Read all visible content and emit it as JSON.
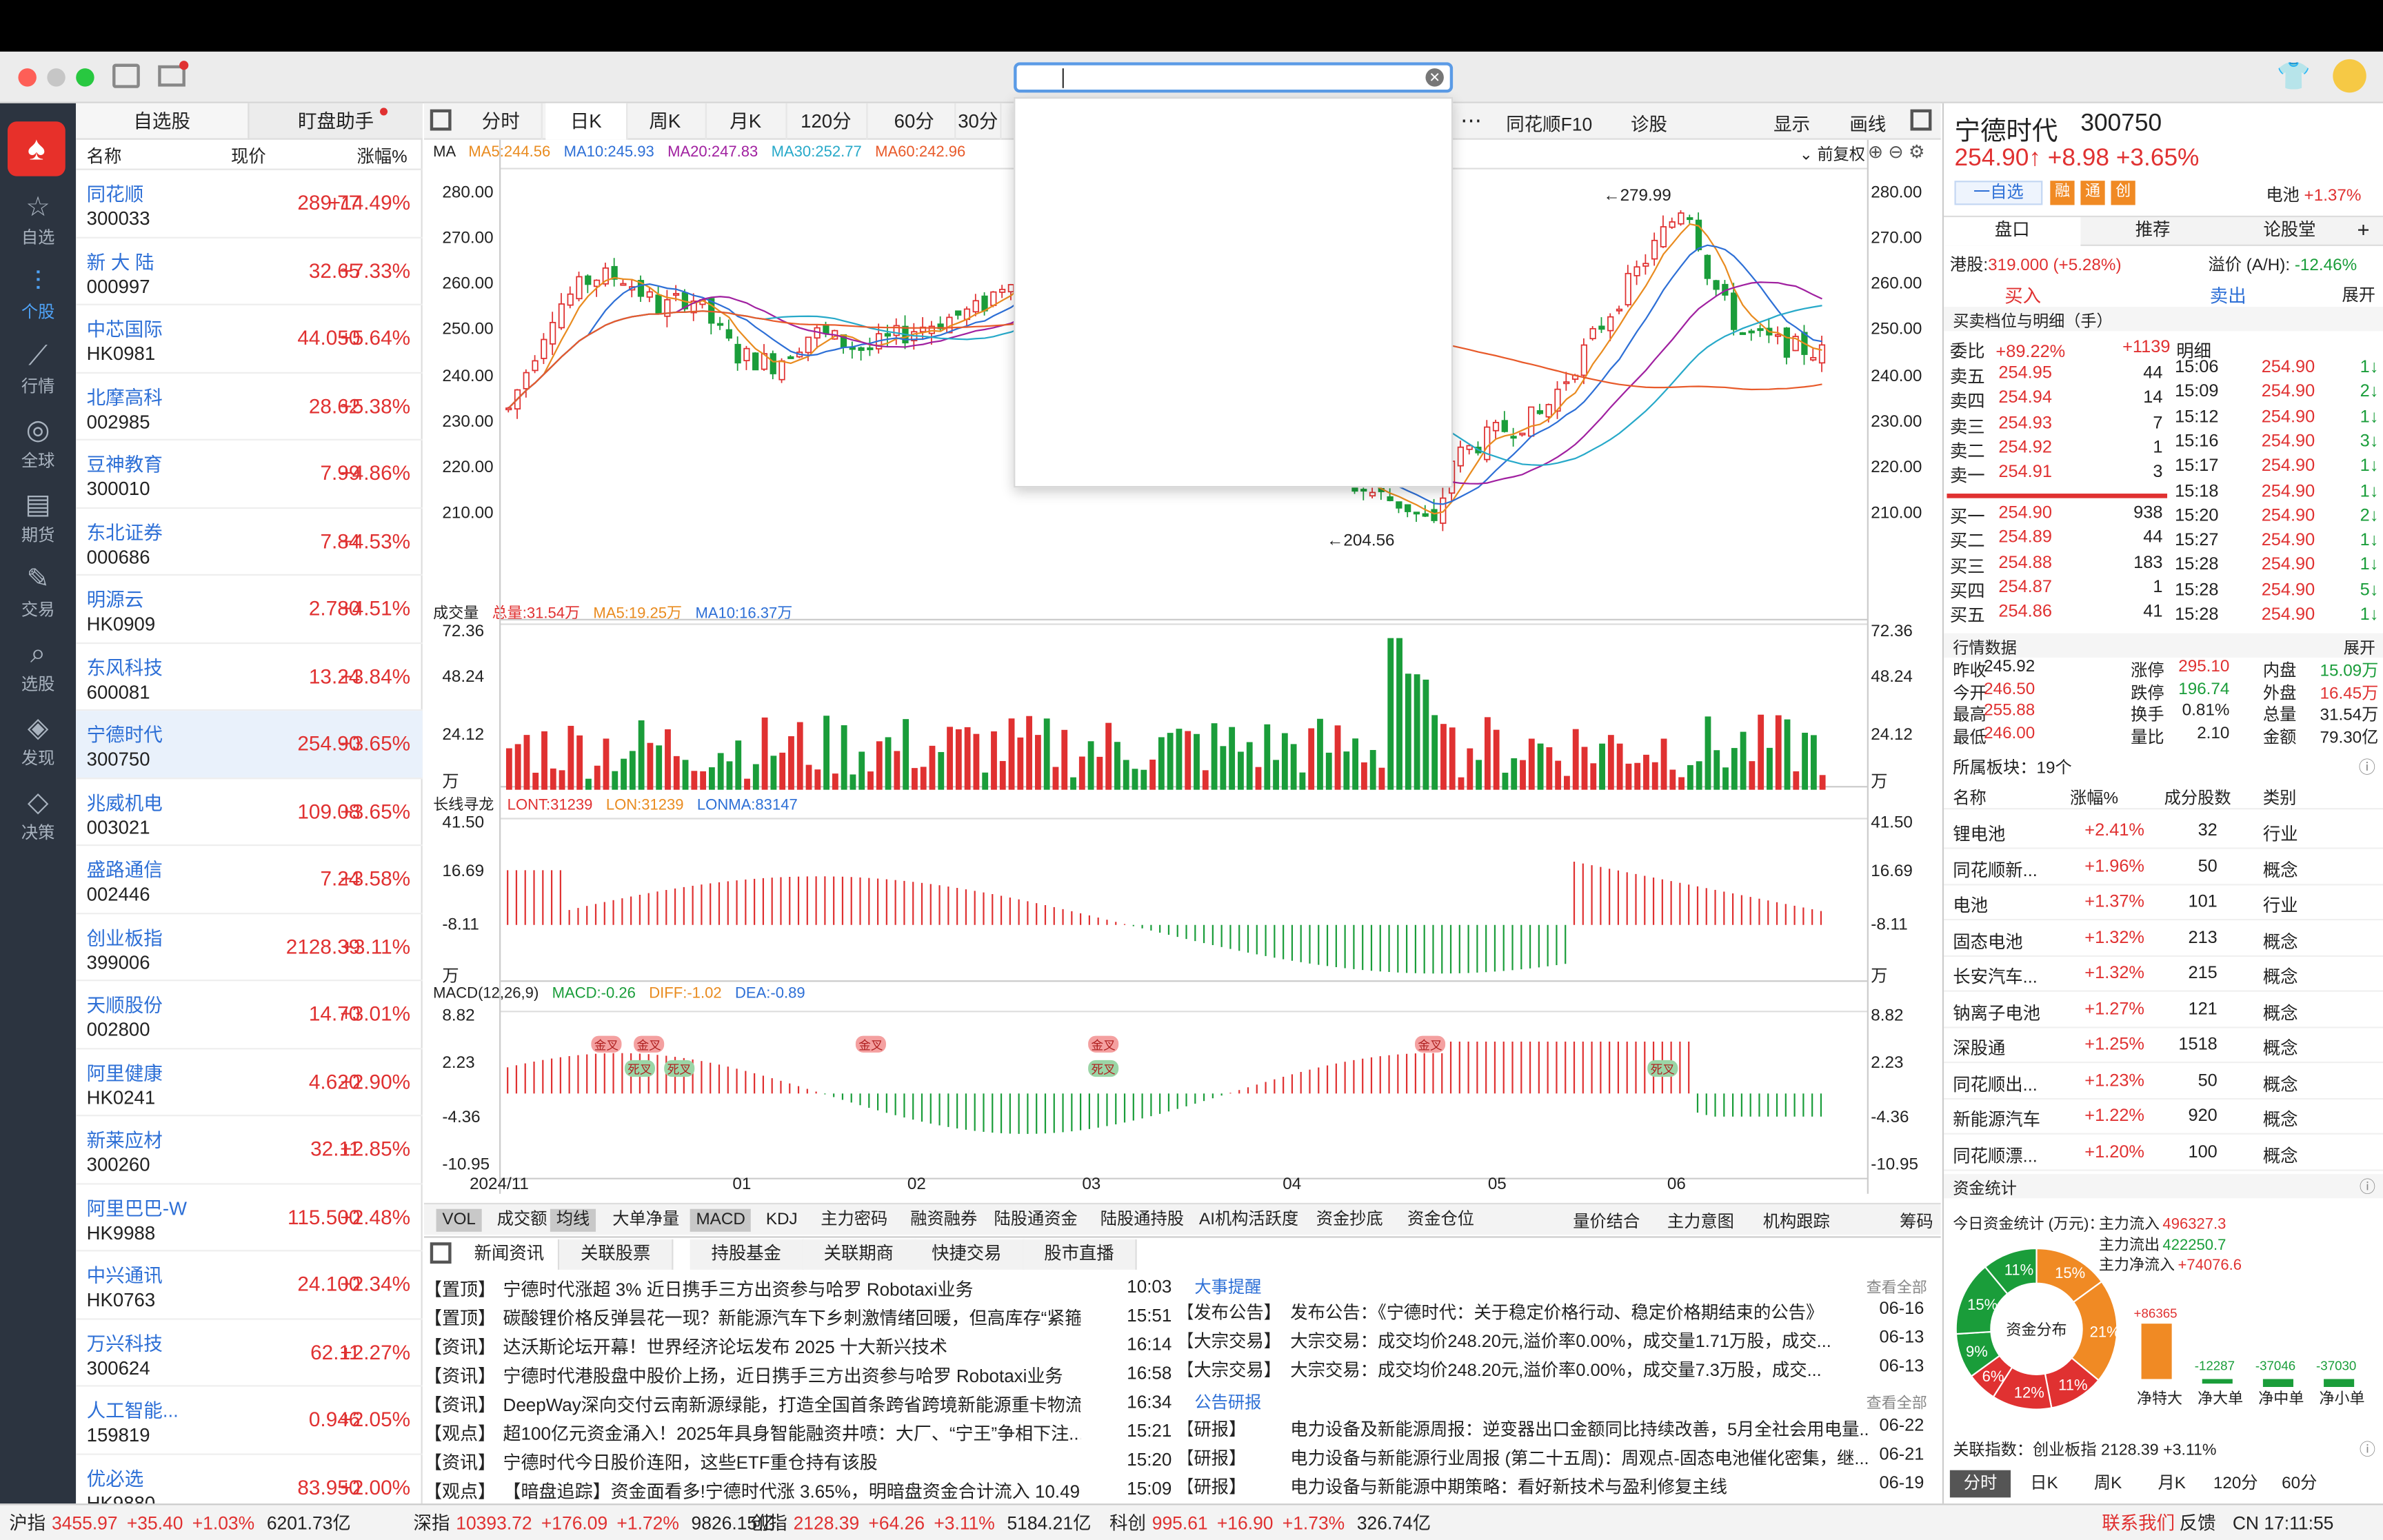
{
  "window": {
    "search_value": ""
  },
  "nav": [
    {
      "label": "自选",
      "icon": "star-icon"
    },
    {
      "label": "个股",
      "icon": "candlestick-icon"
    },
    {
      "label": "行情",
      "icon": "chart-line-icon"
    },
    {
      "label": "全球",
      "icon": "globe-icon"
    },
    {
      "label": "期货",
      "icon": "futures-icon"
    },
    {
      "label": "交易",
      "icon": "trade-icon"
    },
    {
      "label": "选股",
      "icon": "stock-picker-icon"
    },
    {
      "label": "发现",
      "icon": "compass-icon"
    },
    {
      "label": "决策",
      "icon": "diamond-icon"
    }
  ],
  "watchlist": {
    "tabs": [
      "自选股",
      "盯盘助手"
    ],
    "headers": [
      "名称",
      "现价",
      "涨幅%"
    ],
    "rows": [
      {
        "name": "同花顺",
        "code": "300033",
        "price": "289.77",
        "pct": "+14.49%"
      },
      {
        "name": "新 大 陆",
        "code": "000997",
        "price": "32.65",
        "pct": "+7.33%"
      },
      {
        "name": "中芯国际",
        "code": "HK0981",
        "price": "44.050",
        "pct": "+5.64%"
      },
      {
        "name": "北摩高科",
        "code": "002985",
        "price": "28.62",
        "pct": "+5.38%"
      },
      {
        "name": "豆神教育",
        "code": "300010",
        "price": "7.99",
        "pct": "+4.86%"
      },
      {
        "name": "东北证券",
        "code": "000686",
        "price": "7.84",
        "pct": "+4.53%"
      },
      {
        "name": "明源云",
        "code": "HK0909",
        "price": "2.780",
        "pct": "+4.51%"
      },
      {
        "name": "东风科技",
        "code": "600081",
        "price": "13.24",
        "pct": "+3.84%"
      },
      {
        "name": "宁德时代",
        "code": "300750",
        "price": "254.90",
        "pct": "+3.65%"
      },
      {
        "name": "兆威机电",
        "code": "003021",
        "price": "109.08",
        "pct": "+3.65%"
      },
      {
        "name": "盛路通信",
        "code": "002446",
        "price": "7.24",
        "pct": "+3.58%"
      },
      {
        "name": "创业板指",
        "code": "399006",
        "price": "2128.39",
        "pct": "+3.11%"
      },
      {
        "name": "天顺股份",
        "code": "002800",
        "price": "14.70",
        "pct": "+3.01%"
      },
      {
        "name": "阿里健康",
        "code": "HK0241",
        "price": "4.620",
        "pct": "+2.90%"
      },
      {
        "name": "新莱应材",
        "code": "300260",
        "price": "32.11",
        "pct": "+2.85%"
      },
      {
        "name": "阿里巴巴-W",
        "code": "HK9988",
        "price": "115.500",
        "pct": "+2.48%"
      },
      {
        "name": "中兴通讯",
        "code": "HK0763",
        "price": "24.100",
        "pct": "+2.34%"
      },
      {
        "name": "万兴科技",
        "code": "300624",
        "price": "62.11",
        "pct": "+2.27%"
      },
      {
        "name": "人工智能...",
        "code": "159819",
        "price": "0.946",
        "pct": "+2.05%"
      },
      {
        "name": "优必选",
        "code": "HK9880",
        "price": "83.950",
        "pct": "+2.00%"
      }
    ]
  },
  "chart": {
    "tabs": [
      "分时",
      "日K",
      "周K",
      "月K",
      "120分",
      "60分",
      "30分"
    ],
    "right_tabs": [
      "同花顺F10",
      "诊股"
    ],
    "show_label": "显示",
    "draw_label": "画线",
    "more": "⋯",
    "ma": {
      "title": "MA",
      "ma5": "MA5:244.56",
      "ma10": "MA10:245.93",
      "ma20": "MA20:247.83",
      "ma30": "MA30:252.77",
      "ma60": "MA60:242.96",
      "adj": "前复权"
    },
    "price_ticks": [
      "280.00",
      "270.00",
      "260.00",
      "250.00",
      "240.00",
      "230.00",
      "220.00",
      "210.00"
    ],
    "high_label": "←279.99",
    "low_label": "←204.56",
    "vol": {
      "title": "成交量",
      "total": "总量:31.54万",
      "ma5": "MA5:19.25万",
      "ma10": "MA10:16.37万",
      "ticks": [
        "72.36",
        "48.24",
        "24.12",
        "万"
      ]
    },
    "lt": {
      "title": "长线寻龙",
      "lont": "LONT:31239",
      "lon": "LON:31239",
      "lonma": "LONMA:83147",
      "ticks": [
        "41.50",
        "16.69",
        "-8.11",
        "万"
      ]
    },
    "macd": {
      "title": "MACD(12,26,9)",
      "macd": "MACD:-0.26",
      "diff": "DIFF:-1.02",
      "dea": "DEA:-0.89",
      "ticks": [
        "8.82",
        "2.23",
        "-4.36",
        "-10.95"
      ]
    },
    "xlabels": [
      "2024/11",
      "01",
      "02",
      "03",
      "04",
      "05",
      "06"
    ],
    "gold_cross": "金叉",
    "dead_cross": "死叉",
    "indicator_tabs": [
      "VOL",
      "成交额",
      "均线",
      "大单净量",
      "MACD",
      "KDJ",
      "主力密码",
      "融资融券",
      "陆股通资金",
      "陆股通持股",
      "AI机构活跃度",
      "资金抄底",
      "资金仓位"
    ],
    "indicator_right": [
      "量价结合",
      "主力意图",
      "机构跟踪",
      "筹码"
    ]
  },
  "chart_data": {
    "type": "candlestick",
    "title": "宁德时代 300750 日K",
    "ylim": [
      202,
      285
    ],
    "high": 279.99,
    "low": 204.56,
    "x_labels": [
      "2024/11",
      "01",
      "02",
      "03",
      "04",
      "05",
      "06"
    ]
  },
  "news": {
    "tabs": [
      "新闻资讯",
      "关联股票",
      "持股基金",
      "关联期商",
      "快捷交易",
      "股市直播"
    ],
    "items": [
      {
        "tag": "【置顶】",
        "text": "宁德时代涨超 3% 近日携手三方出资参与哈罗 Robotaxi业务",
        "time": "10:03"
      },
      {
        "tag": "【置顶】",
        "text": "碳酸锂价格反弹昙花一现？新能源汽车下乡刺激情绪回暖，但高库存“紧箍...",
        "time": "15:51"
      },
      {
        "tag": "【资讯】",
        "text": "达沃斯论坛开幕！世界经济论坛发布 2025 十大新兴技术",
        "time": "16:14"
      },
      {
        "tag": "【资讯】",
        "text": "宁德时代港股盘中股价上扬，近日携手三方出资参与哈罗 Robotaxi业务",
        "time": "16:58"
      },
      {
        "tag": "【资讯】",
        "text": "DeepWay深向交付云南新源绿能，打造全国首条跨省跨境新能源重卡物流...",
        "time": "16:34"
      },
      {
        "tag": "【观点】",
        "text": "超100亿元资金涌入！2025年具身智能融资井喷：大厂、“宁王”争相下注...",
        "time": "15:21"
      },
      {
        "tag": "【资讯】",
        "text": "宁德时代今日股价连阳，这些ETF重仓持有该股",
        "time": "15:20"
      },
      {
        "tag": "【观点】",
        "text": "【暗盘追踪】资金面看多!宁德时代涨 3.65%，明暗盘资金合计流入 10.49亿元!",
        "time": "15:09"
      }
    ],
    "events_title": "大事提醒",
    "see_all": "查看全部",
    "events": [
      {
        "tag": "【发布公告】",
        "text": "发布公告：《宁德时代：关于稳定价格行动、稳定价格期结束的公告》",
        "date": "06-16"
      },
      {
        "tag": "【大宗交易】",
        "text": "大宗交易：成交均价248.20元,溢价率0.00%，成交量1.71万股，成交...",
        "date": "06-13"
      },
      {
        "tag": "【大宗交易】",
        "text": "大宗交易：成交均价248.20元,溢价率0.00%，成交量7.3万股，成交...",
        "date": "06-13"
      }
    ],
    "research_title": "公告研报",
    "research": [
      {
        "tag": "【研报】",
        "text": "电力设备及新能源周报：逆变器出口金额同比持续改善，5月全社会用电量...",
        "date": "06-22"
      },
      {
        "tag": "【研报】",
        "text": "电力设备与新能源行业周报 (第二十五周)：周观点-固态电池催化密集，继...",
        "date": "06-21"
      },
      {
        "tag": "【研报】",
        "text": "电力设备与新能源中期策略：看好新技术与盈利修复主线",
        "date": "06-19"
      }
    ]
  },
  "stock": {
    "name": "宁德时代",
    "code": "300750",
    "price": "254.90↑",
    "chg": "+8.98",
    "pct": "+3.65%",
    "add_label": "一自选",
    "badges": [
      "融",
      "通",
      "创"
    ],
    "sector": "电池",
    "sector_pct": "+1.37%",
    "tabs": [
      "盘口",
      "推荐",
      "论股堂"
    ],
    "hk_label": "港股:",
    "hk_value": "319.000 (+5.28%)",
    "premium_label": "溢价 (A/H):",
    "premium_value": "-12.46%",
    "buy_label": "买入",
    "sell_label": "卖出",
    "expand": "展开",
    "book_title": "买卖档位与明细（手）",
    "webi_label": "委比",
    "webi": "+89.22%",
    "webi_diff": "+1139",
    "detail_title": "明细",
    "asks": [
      [
        "卖五",
        "254.95",
        "44"
      ],
      [
        "卖四",
        "254.94",
        "14"
      ],
      [
        "卖三",
        "254.93",
        "7"
      ],
      [
        "卖二",
        "254.92",
        "1"
      ],
      [
        "卖一",
        "254.91",
        "3"
      ]
    ],
    "bids": [
      [
        "买一",
        "254.90",
        "938"
      ],
      [
        "买二",
        "254.89",
        "44"
      ],
      [
        "买三",
        "254.88",
        "183"
      ],
      [
        "买四",
        "254.87",
        "1"
      ],
      [
        "买五",
        "254.86",
        "41"
      ]
    ],
    "ticks": [
      [
        "15:06",
        "254.90",
        "1↓"
      ],
      [
        "15:09",
        "254.90",
        "2↓"
      ],
      [
        "15:12",
        "254.90",
        "1↓"
      ],
      [
        "15:16",
        "254.90",
        "3↓"
      ],
      [
        "15:17",
        "254.90",
        "1↓"
      ],
      [
        "15:18",
        "254.90",
        "1↓"
      ],
      [
        "15:20",
        "254.90",
        "2↓"
      ],
      [
        "15:27",
        "254.90",
        "1↓"
      ],
      [
        "15:28",
        "254.90",
        "1↓"
      ],
      [
        "15:28",
        "254.90",
        "5↓"
      ],
      [
        "15:28",
        "254.90",
        "1↓"
      ]
    ],
    "mkt_title": "行情数据",
    "mkt": [
      [
        "昨收",
        "245.92",
        "涨停",
        "295.10",
        "内盘",
        "15.09万"
      ],
      [
        "今开",
        "246.50",
        "跌停",
        "196.74",
        "外盘",
        "16.45万"
      ],
      [
        "最高",
        "255.88",
        "换手",
        "0.81%",
        "总量",
        "31.54万"
      ],
      [
        "最低",
        "246.00",
        "量比",
        "2.10",
        "金额",
        "79.30亿"
      ]
    ],
    "board_title": "所属板块：19个",
    "board_headers": [
      "名称",
      "涨幅%",
      "成分股数",
      "类别"
    ],
    "boards": [
      [
        "锂电池",
        "+2.41%",
        "32",
        "行业"
      ],
      [
        "同花顺新...",
        "+1.96%",
        "50",
        "概念"
      ],
      [
        "电池",
        "+1.37%",
        "101",
        "行业"
      ],
      [
        "固态电池",
        "+1.32%",
        "213",
        "概念"
      ],
      [
        "长安汽车...",
        "+1.32%",
        "215",
        "概念"
      ],
      [
        "钠离子电池",
        "+1.27%",
        "121",
        "概念"
      ],
      [
        "深股通",
        "+1.25%",
        "1518",
        "概念"
      ],
      [
        "同花顺出...",
        "+1.23%",
        "50",
        "概念"
      ],
      [
        "新能源汽车",
        "+1.22%",
        "920",
        "概念"
      ],
      [
        "同花顺漂...",
        "+1.20%",
        "100",
        "概念"
      ]
    ],
    "fund_title": "资金统计",
    "fund_today": "今日资金统计 (万元)：",
    "fund_lines": [
      [
        "主力流入",
        "496327.3"
      ],
      [
        "主力流出",
        "422250.7"
      ],
      [
        "主力净流入",
        "+74076.6"
      ]
    ],
    "pie_center": "资金分布",
    "pie": [
      {
        "label": "15%",
        "value": 15,
        "color": "#f08a24"
      },
      {
        "label": "21%",
        "value": 21,
        "color": "#f08a24"
      },
      {
        "label": "11%",
        "value": 11,
        "color": "#e03131"
      },
      {
        "label": "12%",
        "value": 12,
        "color": "#e03131"
      },
      {
        "label": "6%",
        "value": 6,
        "color": "#e03131"
      },
      {
        "label": "9%",
        "value": 9,
        "color": "#1a9d3a"
      },
      {
        "label": "15%",
        "value": 15,
        "color": "#1a9d3a"
      },
      {
        "label": "11%",
        "value": 11,
        "color": "#1a9d3a"
      }
    ],
    "bars": [
      {
        "label": "净特大",
        "value": 86365,
        "text": "+86365"
      },
      {
        "label": "净大单",
        "value": -12287,
        "text": "-12287"
      },
      {
        "label": "净中单",
        "value": -37046,
        "text": "-37046"
      },
      {
        "label": "净小单",
        "value": -37030,
        "text": "-37030"
      }
    ],
    "index_line": "关联指数：创业板指 2128.39 +3.11%",
    "bottom_tabs": [
      "分时",
      "日K",
      "周K",
      "月K",
      "120分",
      "60分"
    ]
  },
  "status": {
    "items": [
      {
        "name": "沪指",
        "val": "3455.97",
        "chg": "+35.40",
        "pct": "+1.03%",
        "amt": "6201.73亿"
      },
      {
        "name": "深指",
        "val": "10393.72",
        "chg": "+176.09",
        "pct": "+1.72%",
        "amt": "9826.15亿"
      },
      {
        "name": "创指",
        "val": "2128.39",
        "chg": "+64.26",
        "pct": "+3.11%",
        "amt": "5184.21亿"
      },
      {
        "name": "科创",
        "val": "995.61",
        "chg": "+16.90",
        "pct": "+1.73%",
        "amt": "326.74亿"
      }
    ],
    "contact": "联系我们",
    "feedback": "反馈",
    "clock": "CN 17:11:55"
  }
}
